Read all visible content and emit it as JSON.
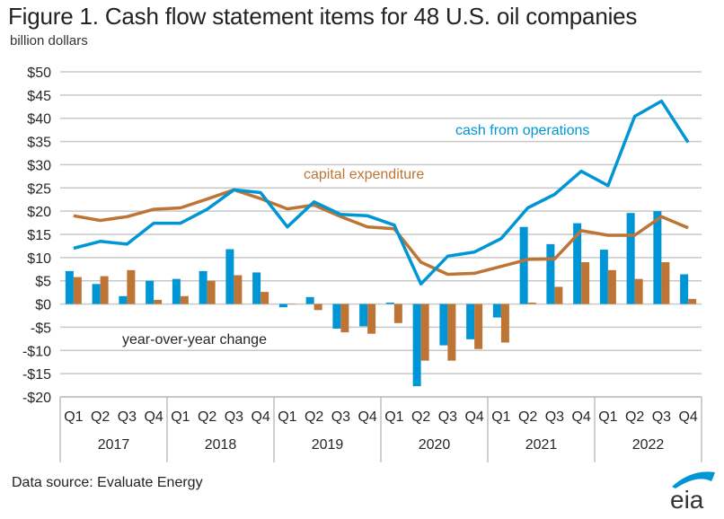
{
  "header": {
    "title": "Figure 1. Cash flow statement items for 48 U.S. oil companies",
    "subtitle": "billion dollars"
  },
  "footer": {
    "source": "Data source: Evaluate Energy",
    "logo_text": "eia"
  },
  "colors": {
    "cash_from_operations": "#0096D6",
    "capital_expenditure": "#BE7434",
    "gridline": "#C8C8C8",
    "text": "#262626"
  },
  "chart_data": {
    "type": "bar",
    "title": "Figure 1. Cash flow statement items for 48 U.S. oil companies",
    "ylabel": "billion dollars",
    "xlabel": "",
    "ylim": [
      -20,
      50
    ],
    "ytick_step": 5,
    "yticks": [
      "$50",
      "$45",
      "$40",
      "$35",
      "$30",
      "$25",
      "$20",
      "$15",
      "$10",
      "$5",
      "$0",
      "-$5",
      "-$10",
      "-$15",
      "-$20"
    ],
    "ytick_values": [
      50,
      45,
      40,
      35,
      30,
      25,
      20,
      15,
      10,
      5,
      0,
      -5,
      -10,
      -15,
      -20
    ],
    "grid": true,
    "categories": [
      "Q1",
      "Q2",
      "Q3",
      "Q4",
      "Q1",
      "Q2",
      "Q3",
      "Q4",
      "Q1",
      "Q2",
      "Q3",
      "Q4",
      "Q1",
      "Q2",
      "Q3",
      "Q4",
      "Q1",
      "Q2",
      "Q3",
      "Q4",
      "Q1",
      "Q2",
      "Q3",
      "Q4"
    ],
    "groups": [
      "2017",
      "2018",
      "2019",
      "2020",
      "2021",
      "2022"
    ],
    "annotations": {
      "cash_from_operations": "cash from operations",
      "capital_expenditure": "capital expenditure",
      "year_over_year_change": "year-over-year change"
    },
    "line_series": [
      {
        "name": "cash from operations",
        "type": "line",
        "values": [
          12.0,
          13.5,
          12.9,
          17.4,
          17.4,
          20.4,
          24.6,
          24.0,
          16.6,
          22.0,
          19.3,
          19.0,
          17.0,
          4.3,
          10.3,
          11.2,
          14.1,
          20.7,
          23.6,
          28.6,
          25.5,
          40.4,
          43.7,
          34.8
        ]
      },
      {
        "name": "capital expenditure",
        "type": "line",
        "values": [
          19.0,
          18.0,
          18.8,
          20.4,
          20.7,
          22.6,
          24.6,
          22.7,
          20.5,
          21.3,
          18.8,
          16.6,
          16.2,
          9.0,
          6.4,
          6.6,
          8.1,
          9.6,
          9.7,
          15.8,
          14.8,
          14.8,
          18.8,
          16.4
        ]
      }
    ],
    "bar_series": [
      {
        "name": "cash from operations year-over-year change",
        "type": "bar",
        "values": [
          7.1,
          4.3,
          1.7,
          5.0,
          5.4,
          7.1,
          11.8,
          6.8,
          -0.7,
          1.5,
          -5.3,
          -4.8,
          0.3,
          -17.7,
          -8.9,
          -7.6,
          -2.9,
          16.6,
          12.9,
          17.4,
          11.7,
          19.6,
          20.0,
          6.4
        ]
      },
      {
        "name": "capital expenditure year-over-year change",
        "type": "bar",
        "values": [
          5.8,
          6.0,
          7.3,
          0.9,
          1.7,
          5.0,
          6.2,
          2.6,
          0.0,
          -1.3,
          -6.1,
          -6.4,
          -4.1,
          -12.2,
          -12.2,
          -9.7,
          -8.3,
          0.3,
          3.7,
          9.0,
          7.3,
          5.4,
          9.0,
          1.1
        ]
      }
    ]
  }
}
